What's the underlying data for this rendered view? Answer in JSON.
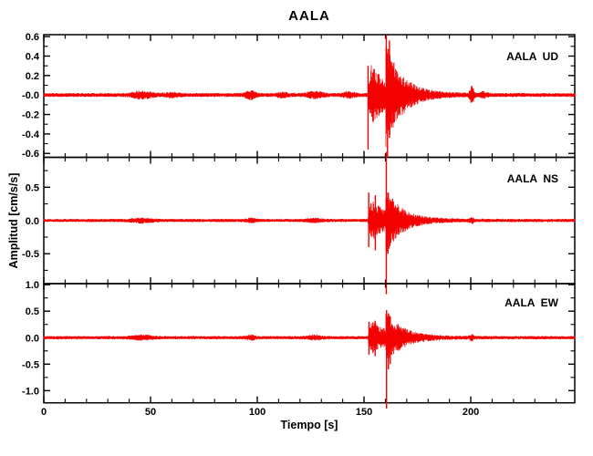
{
  "figure": {
    "background": "#ffffff",
    "frame_color": "#000000",
    "text_color": "#000000"
  },
  "chart_data": {
    "type": "line",
    "title": "AALA",
    "xlabel": "Tiempo [s]",
    "ylabel": "Amplitud [cm/s/s]",
    "trace_color": "#f30000",
    "x_range_s": [
      0,
      248.7
    ],
    "x_major_ticks": [
      0,
      50,
      100,
      150,
      200
    ],
    "x_minor_step_s": 10,
    "grid": "off",
    "event": {
      "p_arrival_s": 151.8,
      "s_arrival_s": 160.2,
      "coda_end_s": 188,
      "aftershock_s": 200.5
    },
    "panels": [
      {
        "station": "AALA",
        "component": "UD",
        "label": "AALA  UD",
        "ylim": [
          -0.64,
          0.62
        ],
        "y_major_ticks": [
          {
            "v": 0.6,
            "t": "0.6"
          },
          {
            "v": 0.4,
            "t": "0.4"
          },
          {
            "v": 0.2,
            "t": "0.2"
          },
          {
            "v": 0.0,
            "t": "-0.0"
          },
          {
            "v": -0.2,
            "t": "-0.2"
          },
          {
            "v": -0.4,
            "t": "-0.4"
          },
          {
            "v": -0.6,
            "t": "-0.6"
          }
        ],
        "y_minor_step": 0.1,
        "peak_amplitude_cmss": 0.63,
        "wave": {
          "seed": 11,
          "noise": 0.021,
          "p_amp": 0.3,
          "s_amp": 0.4,
          "s_decay": 6.5,
          "bursts": [
            [
              46,
              5,
              0.03
            ],
            [
              60,
              4,
              0.015
            ],
            [
              97,
              2.5,
              0.035
            ],
            [
              112,
              3,
              0.015
            ],
            [
              127,
              4,
              0.025
            ],
            [
              143,
              3,
              0.02
            ],
            [
              200.5,
              1,
              0.085
            ],
            [
              206,
              2,
              0.02
            ]
          ],
          "spikes": [
            [
              151.9,
              -0.56,
              0.3
            ],
            [
              160.45,
              -0.32,
              0.62
            ],
            [
              161.0,
              -0.63,
              0.42
            ],
            [
              161.9,
              -0.44,
              0.56
            ],
            [
              162.8,
              -0.3,
              0.34
            ],
            [
              164.0,
              -0.28,
              0.25
            ]
          ]
        }
      },
      {
        "station": "AALA",
        "component": "NS",
        "label": "AALA  NS",
        "ylim": [
          -0.95,
          0.95
        ],
        "y_major_ticks": [
          {
            "v": 0.5,
            "t": "0.5"
          },
          {
            "v": 0.0,
            "t": "0.0"
          },
          {
            "v": -0.5,
            "t": "-0.5"
          }
        ],
        "y_minor_step": 0.25,
        "peak_amplitude_cmss": 1.11,
        "wave": {
          "seed": 22,
          "noise": 0.025,
          "p_amp": 0.3,
          "s_amp": 0.36,
          "s_decay": 6.0,
          "bursts": [
            [
              46,
              5,
              0.025
            ],
            [
              97,
              2.5,
              0.02
            ],
            [
              127,
              4,
              0.018
            ],
            [
              200.5,
              1,
              0.03
            ]
          ],
          "spikes": [
            [
              152.2,
              -0.4,
              0.42
            ],
            [
              155.3,
              -0.45,
              0.38
            ],
            [
              160.45,
              -1.11,
              1.03
            ],
            [
              161.2,
              -0.5,
              0.42
            ]
          ]
        }
      },
      {
        "station": "AALA",
        "component": "EW",
        "label": "AALA  EW",
        "ylim": [
          -1.23,
          1.02
        ],
        "y_major_ticks": [
          {
            "v": 1.0,
            "t": "1.0"
          },
          {
            "v": 0.5,
            "t": "0.5"
          },
          {
            "v": 0.0,
            "t": "0.0"
          },
          {
            "v": -0.5,
            "t": "-0.5"
          },
          {
            "v": -1.0,
            "t": "-1.0"
          }
        ],
        "y_minor_step": 0.25,
        "peak_amplitude_cmss": 1.34,
        "wave": {
          "seed": 33,
          "noise": 0.032,
          "p_amp": 0.3,
          "s_amp": 0.36,
          "s_decay": 6.5,
          "bursts": [
            [
              46,
              5,
              0.03
            ],
            [
              97,
              2.5,
              0.03
            ],
            [
              127,
              4,
              0.025
            ],
            [
              200.5,
              1,
              0.04
            ]
          ],
          "spikes": [
            [
              152.3,
              -0.32,
              0.3
            ],
            [
              155.2,
              -0.35,
              0.32
            ],
            [
              160.55,
              -1.34,
              0.52
            ],
            [
              161.4,
              -0.6,
              0.46
            ],
            [
              162.3,
              -0.5,
              0.4
            ]
          ]
        }
      }
    ]
  }
}
